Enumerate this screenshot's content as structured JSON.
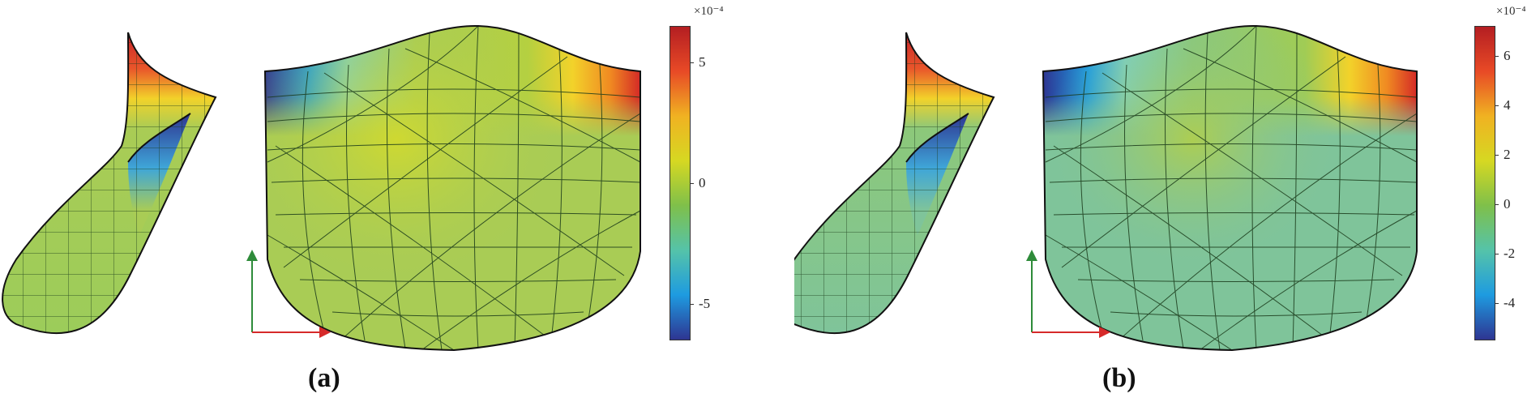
{
  "panels": [
    {
      "label": "(a)",
      "exponent": "×10⁻⁴",
      "ticks": [
        "5",
        "0",
        "-5"
      ],
      "tick_values": [
        5,
        0,
        -5
      ],
      "range": [
        -6.5,
        6.5
      ],
      "surface_color": "#a9cc55"
    },
    {
      "label": "(b)",
      "exponent": "×10⁻⁴",
      "ticks": [
        "6",
        "4",
        "2",
        "0",
        "-2",
        "-4"
      ],
      "tick_values": [
        6,
        4,
        2,
        0,
        -2,
        -4
      ],
      "range": [
        -5.5,
        7.2
      ],
      "surface_color": "#7fc49a"
    }
  ],
  "colormap": [
    "#2e3592",
    "#1e9be0",
    "#55c3a9",
    "#7fc04a",
    "#d6d822",
    "#f0b222",
    "#e84a26",
    "#b41e22"
  ],
  "axis_colors": {
    "vertical": "#2e8b3a",
    "horizontal": "#d62a2a"
  }
}
